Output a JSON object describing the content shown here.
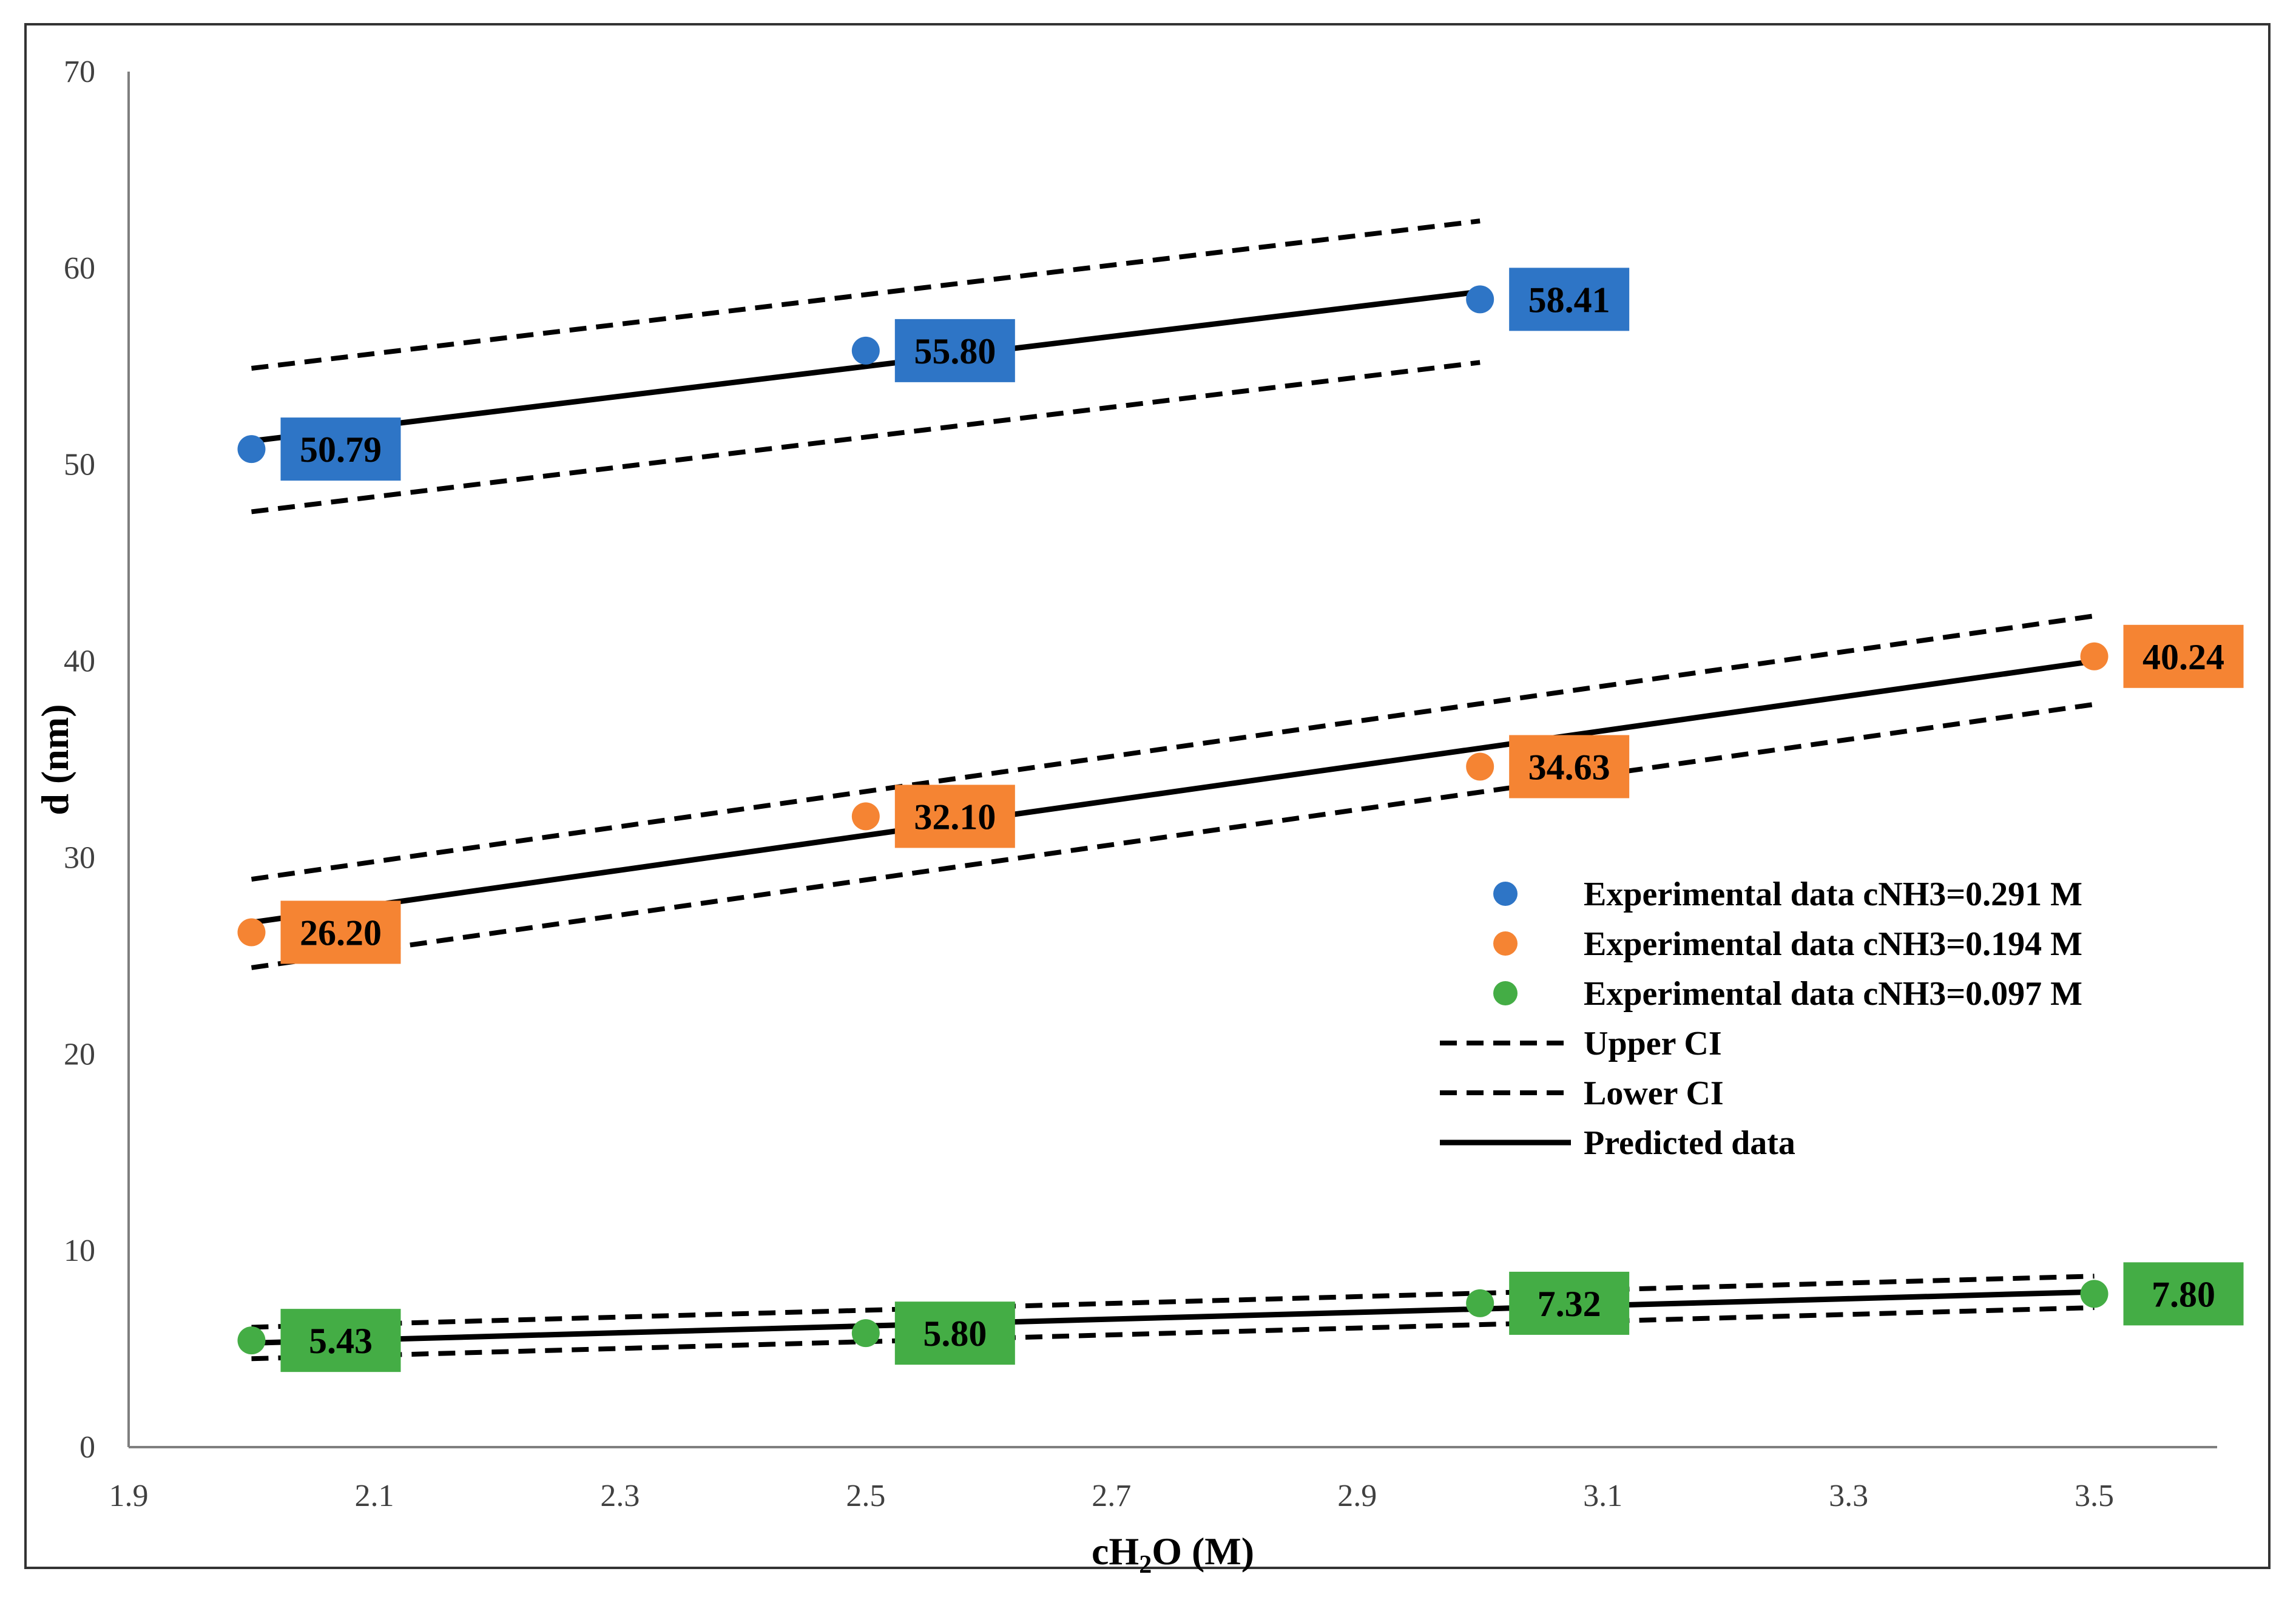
{
  "chart_data": {
    "type": "scatter",
    "xlabel_parts": [
      "cH",
      "2",
      "O (M)"
    ],
    "ylabel": "d (nm)",
    "xlim": [
      1.9,
      3.6
    ],
    "ylim": [
      0,
      70
    ],
    "x_ticks": [
      "1.9",
      "2.1",
      "2.3",
      "2.5",
      "2.7",
      "2.9",
      "3.1",
      "3.3",
      "3.5"
    ],
    "y_ticks": [
      "0",
      "10",
      "20",
      "30",
      "40",
      "50",
      "60",
      "70"
    ],
    "grid": false,
    "legend_position": "center-right",
    "series": [
      {
        "name": "Experimental data cNH3=0.291 M",
        "color": "#2e75c6",
        "x": [
          2.0,
          2.5,
          3.0
        ],
        "y": [
          50.79,
          55.8,
          58.41
        ],
        "labels": [
          "50.79",
          "55.80",
          "58.41"
        ],
        "predicted": [
          [
            2.0,
            51.2
          ],
          [
            3.0,
            58.8
          ]
        ],
        "upper_ci": [
          [
            2.0,
            54.9
          ],
          [
            3.0,
            62.4
          ]
        ],
        "lower_ci": [
          [
            2.0,
            47.6
          ],
          [
            3.0,
            55.2
          ]
        ]
      },
      {
        "name": "Experimental data cNH3=0.194 M",
        "color": "#f58433",
        "x": [
          2.0,
          2.5,
          3.0,
          3.5
        ],
        "y": [
          26.2,
          32.1,
          34.63,
          40.24
        ],
        "labels": [
          "26.20",
          "32.10",
          "34.63",
          "40.24"
        ],
        "predicted": [
          [
            2.0,
            26.7
          ],
          [
            3.5,
            40.0
          ]
        ],
        "upper_ci": [
          [
            2.0,
            28.9
          ],
          [
            3.5,
            42.3
          ]
        ],
        "lower_ci": [
          [
            2.0,
            24.4
          ],
          [
            3.5,
            37.8
          ]
        ]
      },
      {
        "name": "Experimental data cNH3=0.097 M",
        "color": "#44ad45",
        "x": [
          2.0,
          2.5,
          3.0,
          3.5
        ],
        "y": [
          5.43,
          5.8,
          7.32,
          7.8
        ],
        "labels": [
          "5.43",
          "5.80",
          "7.32",
          "7.80"
        ],
        "predicted": [
          [
            2.0,
            5.3
          ],
          [
            3.5,
            7.9
          ]
        ],
        "upper_ci": [
          [
            2.0,
            6.1
          ],
          [
            3.5,
            8.7
          ]
        ],
        "lower_ci": [
          [
            2.0,
            4.5
          ],
          [
            3.5,
            7.1
          ]
        ]
      }
    ],
    "legend": [
      {
        "label": "Experimental data cNH3=0.291 M",
        "kind": "marker",
        "color": "#2e75c6"
      },
      {
        "label": "Experimental data cNH3=0.194 M",
        "kind": "marker",
        "color": "#f58433"
      },
      {
        "label": "Experimental data cNH3=0.097 M",
        "kind": "marker",
        "color": "#44ad45"
      },
      {
        "label": "Upper CI",
        "kind": "dashed",
        "color": "#000000"
      },
      {
        "label": "Lower CI",
        "kind": "dashed",
        "color": "#000000"
      },
      {
        "label": "Predicted data",
        "kind": "solid",
        "color": "#000000"
      }
    ]
  }
}
